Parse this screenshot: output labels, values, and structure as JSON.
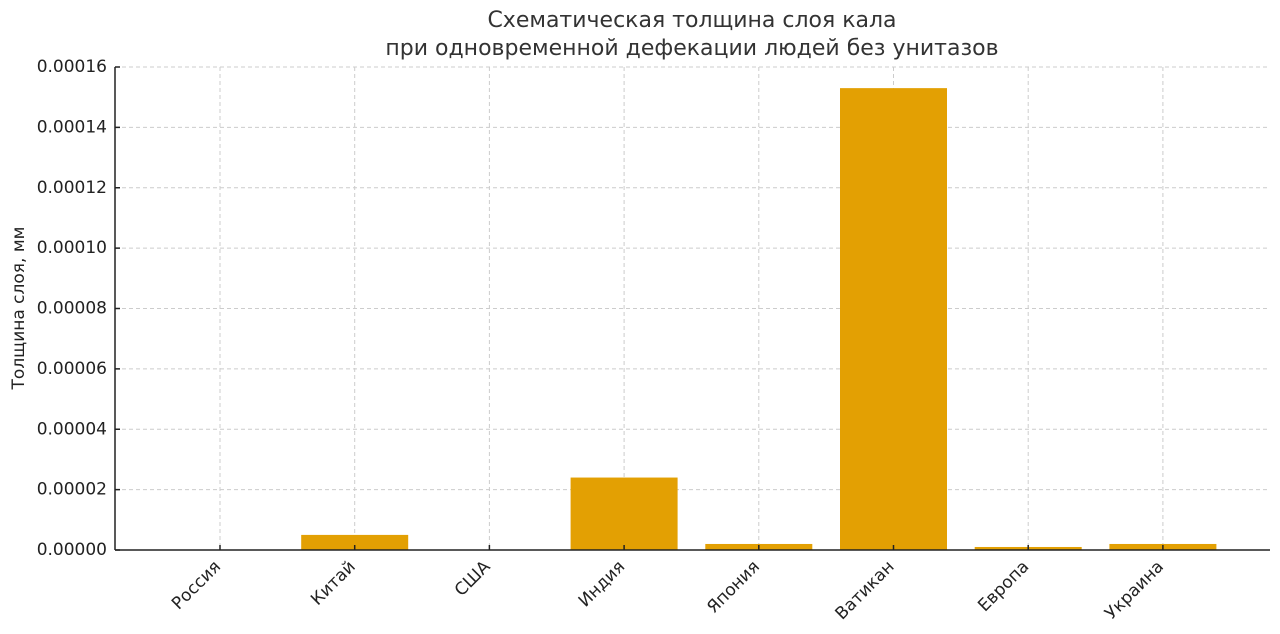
{
  "chart_data": {
    "type": "bar",
    "title": [
      "Схематическая толщина слоя кала",
      "при одновременной дефекации людей без унитазов"
    ],
    "y_label": "Толщина слоя, мм",
    "categories": [
      "Россия",
      "Китай",
      "США",
      "Индия",
      "Япония",
      "Ватикан",
      "Европа",
      "Украина"
    ],
    "values": [
      1e-07,
      5e-06,
      1e-07,
      2.4e-05,
      2e-06,
      0.000153,
      1e-06,
      2e-06
    ],
    "color": "#e3a003",
    "ylim": [
      0,
      0.00016
    ],
    "yticks": [
      {
        "value": 0,
        "label": "0.00000"
      },
      {
        "value": 2e-05,
        "label": "0.00002"
      },
      {
        "value": 4e-05,
        "label": "0.00004"
      },
      {
        "value": 6e-05,
        "label": "0.00006"
      },
      {
        "value": 8e-05,
        "label": "0.00008"
      },
      {
        "value": 0.0001,
        "label": "0.00010"
      },
      {
        "value": 0.00012,
        "label": "0.00012"
      },
      {
        "value": 0.00014,
        "label": "0.00014"
      },
      {
        "value": 0.00016,
        "label": "0.00016"
      }
    ],
    "grid": true
  }
}
